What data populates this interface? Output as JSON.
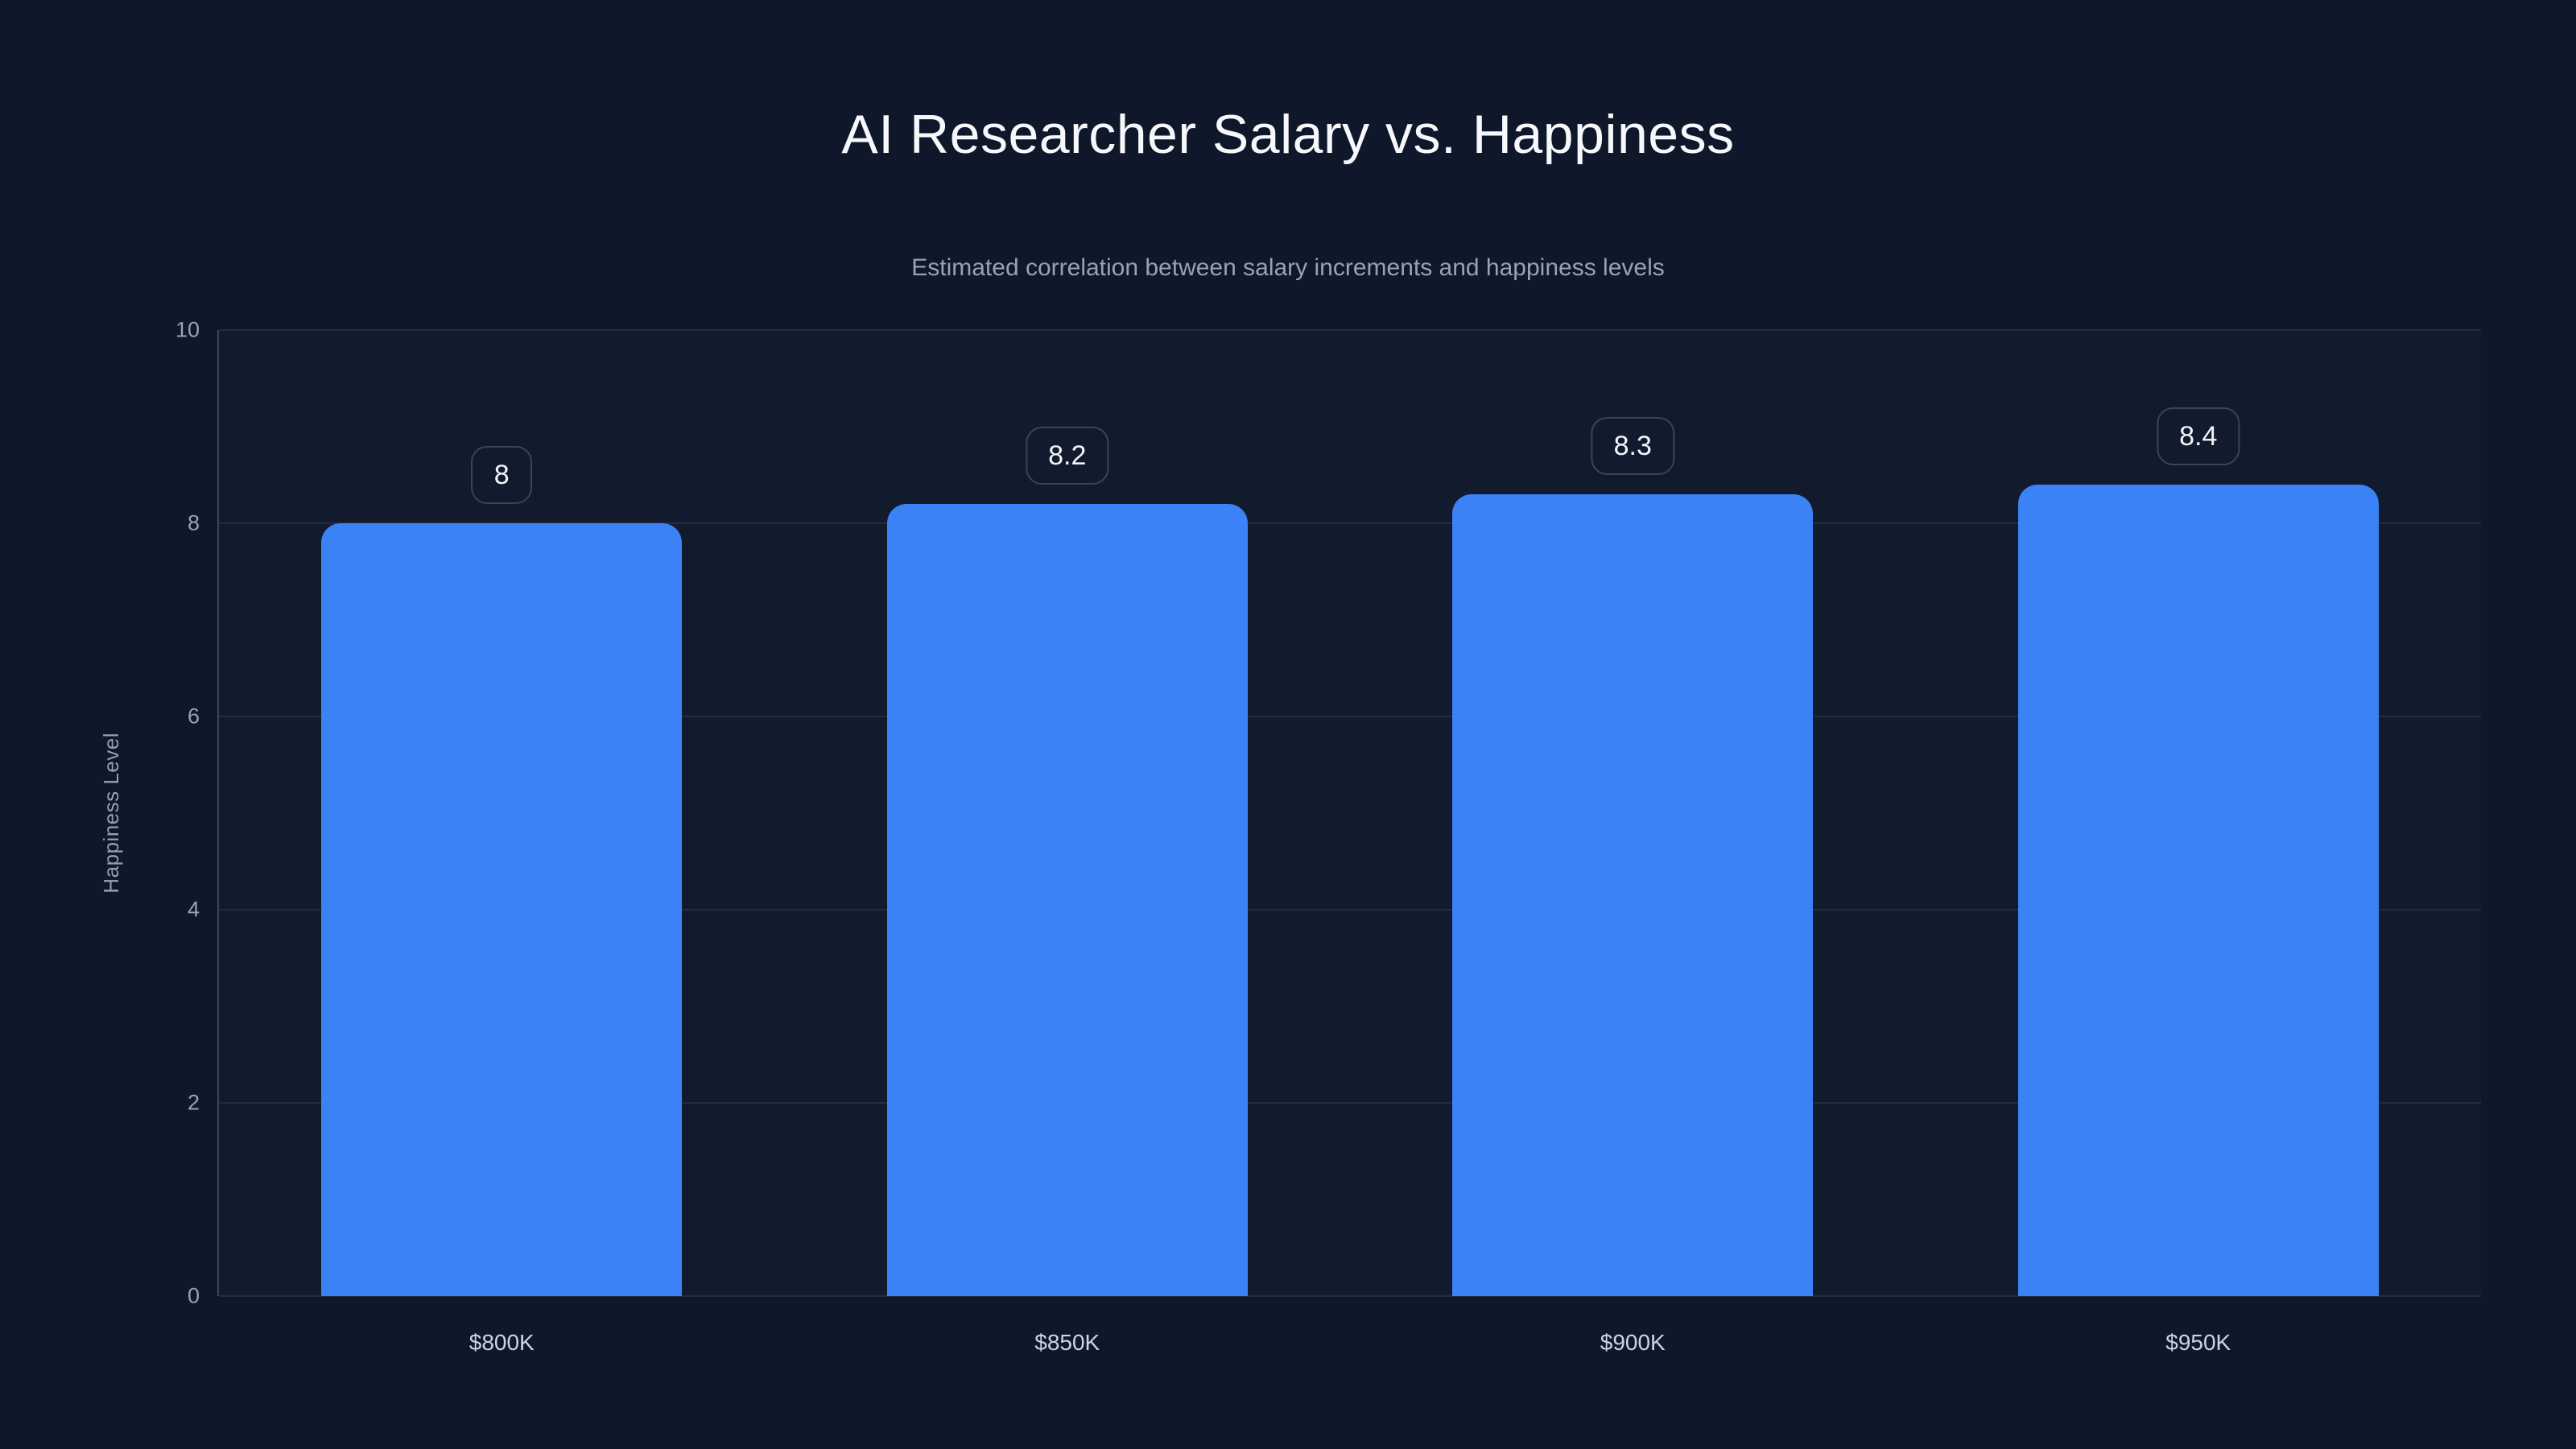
{
  "header": {
    "title": "AI Researcher Salary vs. Happiness",
    "subtitle": "Estimated correlation between salary increments and happiness levels"
  },
  "chart_data": {
    "type": "bar",
    "title": "AI Researcher Salary vs. Happiness",
    "subtitle": "Estimated correlation between salary increments and happiness levels",
    "categories": [
      "$800K",
      "$850K",
      "$900K",
      "$950K"
    ],
    "values": [
      8,
      8.2,
      8.3,
      8.4
    ],
    "value_labels": [
      "8",
      "8.2",
      "8.3",
      "8.4"
    ],
    "xlabel": "",
    "ylabel": "Happiness Level",
    "ylim": [
      0,
      10
    ],
    "yticks": [
      0,
      2,
      4,
      6,
      8,
      10
    ],
    "grid": true,
    "legend": false,
    "bar_color": "#3b82f6"
  },
  "colors": {
    "background": "#0f172a",
    "plot_fill": "rgba(255,255,255,0.015)",
    "bar": "#3b82f6",
    "title_text": "#f6f8fb",
    "subtitle_text": "#94a3b8",
    "y_tick_text": "#94a3b8",
    "x_tick_text": "#cbd5e1",
    "axis_title_text": "#94a3b8",
    "gridline": "rgba(148,163,184,0.14)",
    "axis_line": "rgba(148,163,184,0.32)",
    "badge_border": "#3a4458",
    "badge_text": "#f1f5f9"
  }
}
